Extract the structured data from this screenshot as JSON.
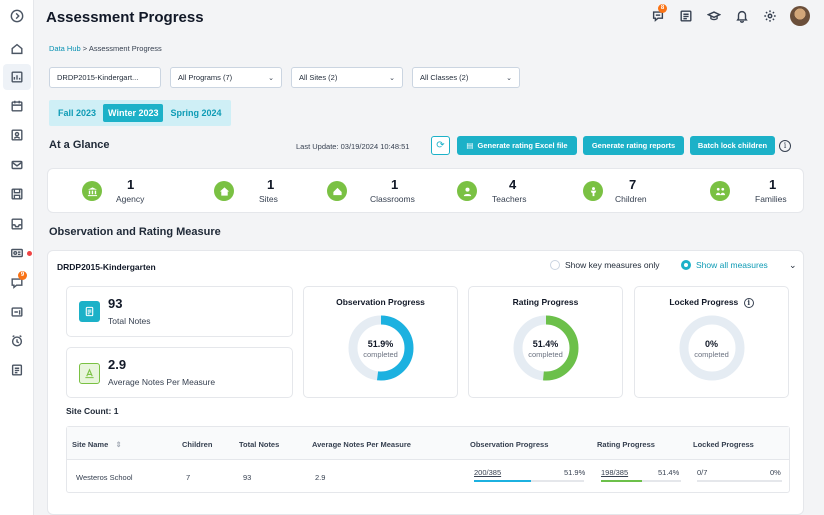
{
  "page": {
    "title": "Assessment Progress"
  },
  "header": {
    "message_badge": "8",
    "icons": [
      "chat-icon",
      "notes-icon",
      "graduation-cap-icon",
      "bell-icon",
      "settings-icon"
    ]
  },
  "sidebar": {
    "message_badge": "9",
    "icons": [
      "collapse-icon",
      "home-icon",
      "dashboard-icon",
      "calendar-icon",
      "contact-icon",
      "mail-icon",
      "save-icon",
      "tray-icon",
      "id-card-icon",
      "chat-icon",
      "inbox-icon",
      "alarm-clock-icon",
      "document-icon"
    ]
  },
  "breadcrumb": {
    "root": "Data Hub",
    "separator": ">",
    "current": "Assessment Progress"
  },
  "filters": {
    "framework": "DRDP2015-Kindergart...",
    "programs": "All Programs (7)",
    "sites": "All Sites (2)",
    "classes": "All Classes (2)"
  },
  "terms": [
    "Fall 2023",
    "Winter 2023",
    "Spring 2024"
  ],
  "active_term": "Winter 2023",
  "glance": {
    "title": "At a Glance",
    "last_update": "Last Update: 03/19/2024 10:48:51",
    "buttons": {
      "excel": "Generate rating Excel file",
      "reports": "Generate rating reports",
      "lock": "Batch lock children"
    },
    "stats": [
      {
        "value": "1",
        "label": "Agency"
      },
      {
        "value": "1",
        "label": "Sites"
      },
      {
        "value": "1",
        "label": "Classrooms"
      },
      {
        "value": "4",
        "label": "Teachers"
      },
      {
        "value": "7",
        "label": "Children"
      },
      {
        "value": "1",
        "label": "Families"
      }
    ]
  },
  "observation": {
    "title": "Observation and Rating Measure",
    "program_name": "DRDP2015-Kindergarten",
    "radio_key": "Show key measures only",
    "radio_all": "Show all measures",
    "total_notes": {
      "value": "93",
      "label": "Total Notes"
    },
    "avg_notes": {
      "value": "2.9",
      "label": "Average Notes Per Measure"
    },
    "progress": [
      {
        "title": "Observation Progress",
        "percent": "51.9%",
        "sub": "completed",
        "fraction": 0.519,
        "color": "#1cb1e0"
      },
      {
        "title": "Rating Progress",
        "percent": "51.4%",
        "sub": "completed",
        "fraction": 0.514,
        "color": "#6cc04a"
      },
      {
        "title": "Locked Progress",
        "percent": "0%",
        "sub": "completed",
        "fraction": 0,
        "color": "#9ca3af"
      }
    ],
    "site_count_label": "Site Count:",
    "site_count": "1"
  },
  "table": {
    "headers": [
      "Site Name",
      "Children",
      "Total Notes",
      "Average Notes Per Measure",
      "Observation Progress",
      "Rating Progress",
      "Locked Progress"
    ],
    "sort_icon": "⇕",
    "row": {
      "site_name": "Westeros School",
      "children": "7",
      "total_notes": "93",
      "avg_notes": "2.9",
      "obs_count": "200/385",
      "obs_pct": "51.9%",
      "obs_fraction": 0.519,
      "rating_count": "198/385",
      "rating_pct": "51.4%",
      "rating_fraction": 0.514,
      "locked_count": "0/7",
      "locked_pct": "0%",
      "locked_fraction": 0
    }
  }
}
